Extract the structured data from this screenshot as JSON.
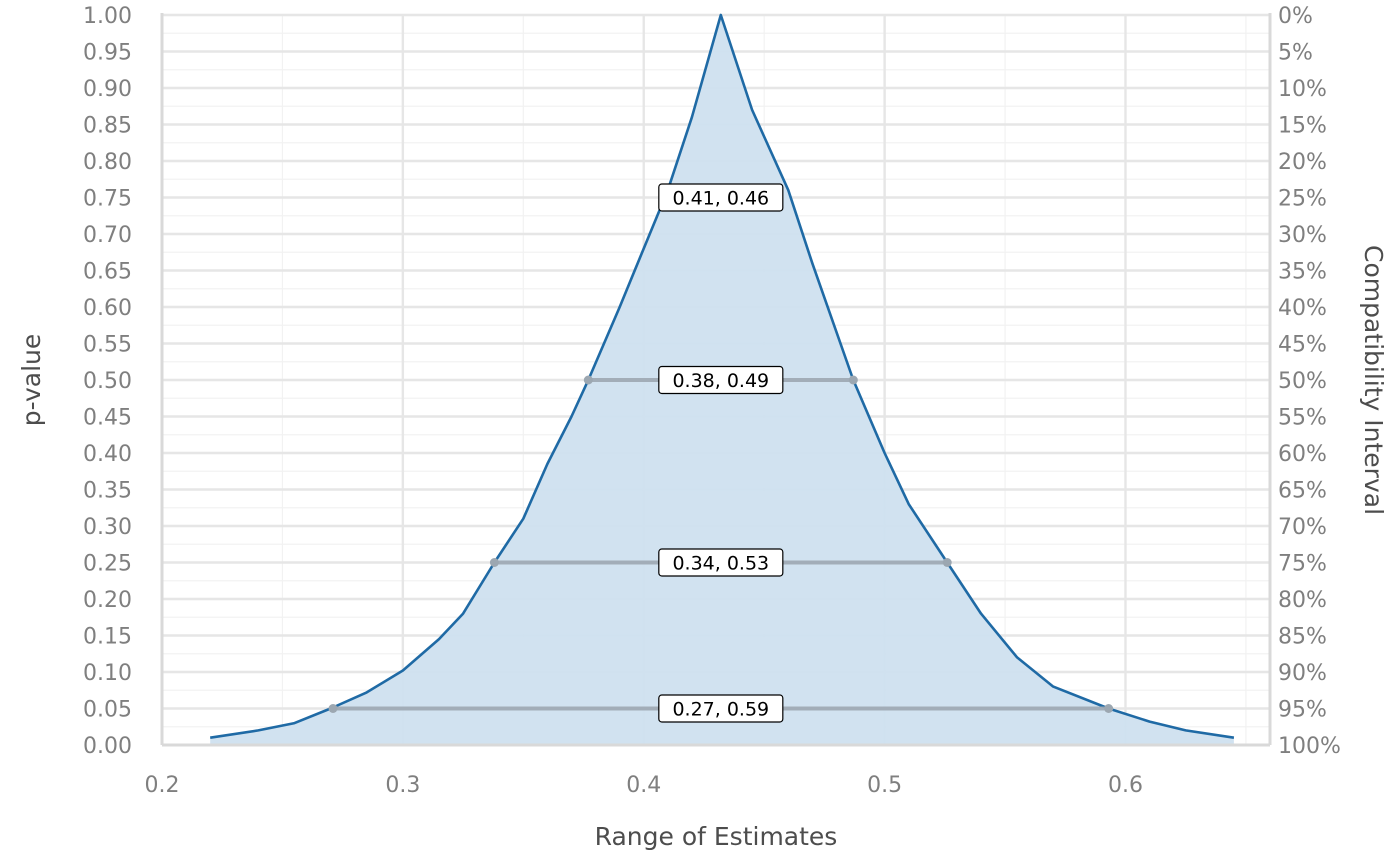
{
  "chart_data": {
    "type": "area",
    "title": "",
    "xlabel": "Range of Estimates",
    "ylabel": "p-value",
    "y2label": "Compatibility Interval",
    "xlim": [
      0.2,
      0.66
    ],
    "ylim": [
      0,
      1
    ],
    "x_ticks": [
      {
        "value": 0.2,
        "label": "0.2"
      },
      {
        "value": 0.3,
        "label": "0.3"
      },
      {
        "value": 0.4,
        "label": "0.4"
      },
      {
        "value": 0.5,
        "label": "0.5"
      },
      {
        "value": 0.6,
        "label": "0.6"
      }
    ],
    "y_ticks": [
      {
        "value": 1.0,
        "label": "1.00",
        "right_label": "0%"
      },
      {
        "value": 0.95,
        "label": "0.95",
        "right_label": "5%"
      },
      {
        "value": 0.9,
        "label": "0.90",
        "right_label": "10%"
      },
      {
        "value": 0.85,
        "label": "0.85",
        "right_label": "15%"
      },
      {
        "value": 0.8,
        "label": "0.80",
        "right_label": "20%"
      },
      {
        "value": 0.75,
        "label": "0.75",
        "right_label": "25%"
      },
      {
        "value": 0.7,
        "label": "0.70",
        "right_label": "30%"
      },
      {
        "value": 0.65,
        "label": "0.65",
        "right_label": "35%"
      },
      {
        "value": 0.6,
        "label": "0.60",
        "right_label": "40%"
      },
      {
        "value": 0.55,
        "label": "0.55",
        "right_label": "45%"
      },
      {
        "value": 0.5,
        "label": "0.50",
        "right_label": "50%"
      },
      {
        "value": 0.45,
        "label": "0.45",
        "right_label": "55%"
      },
      {
        "value": 0.4,
        "label": "0.40",
        "right_label": "60%"
      },
      {
        "value": 0.35,
        "label": "0.35",
        "right_label": "65%"
      },
      {
        "value": 0.3,
        "label": "0.30",
        "right_label": "70%"
      },
      {
        "value": 0.25,
        "label": "0.25",
        "right_label": "75%"
      },
      {
        "value": 0.2,
        "label": "0.20",
        "right_label": "80%"
      },
      {
        "value": 0.15,
        "label": "0.15",
        "right_label": "85%"
      },
      {
        "value": 0.1,
        "label": "0.10",
        "right_label": "90%"
      },
      {
        "value": 0.05,
        "label": "0.05",
        "right_label": "95%"
      },
      {
        "value": 0.0,
        "label": "0.00",
        "right_label": "100%"
      }
    ],
    "grid": true,
    "curve": {
      "x": [
        0.22,
        0.24,
        0.255,
        0.27,
        0.285,
        0.3,
        0.315,
        0.325,
        0.338,
        0.35,
        0.36,
        0.37,
        0.377,
        0.39,
        0.4,
        0.41,
        0.42,
        0.432,
        0.445,
        0.46,
        0.47,
        0.487,
        0.5,
        0.51,
        0.526,
        0.54,
        0.555,
        0.57,
        0.593,
        0.61,
        0.625,
        0.645
      ],
      "y": [
        0.01,
        0.02,
        0.03,
        0.05,
        0.072,
        0.102,
        0.145,
        0.18,
        0.25,
        0.31,
        0.385,
        0.45,
        0.5,
        0.6,
        0.68,
        0.76,
        0.86,
        1.0,
        0.87,
        0.76,
        0.66,
        0.5,
        0.4,
        0.33,
        0.25,
        0.18,
        0.12,
        0.08,
        0.05,
        0.032,
        0.02,
        0.01
      ],
      "color": "#1f6aa5",
      "fill": "#cfe0ef"
    },
    "intervals": [
      {
        "level": 0.75,
        "lower": 0.41,
        "upper": 0.46,
        "label": "0.41, 0.46",
        "show_segment": false
      },
      {
        "level": 0.5,
        "lower": 0.377,
        "upper": 0.487,
        "label": "0.38, 0.49",
        "show_segment": true
      },
      {
        "level": 0.25,
        "lower": 0.338,
        "upper": 0.526,
        "label": "0.34, 0.53",
        "show_segment": true
      },
      {
        "level": 0.05,
        "lower": 0.271,
        "upper": 0.593,
        "label": "0.27, 0.59",
        "show_segment": true
      }
    ],
    "label_x": 0.432,
    "segment_color": "#9ca7b1"
  }
}
